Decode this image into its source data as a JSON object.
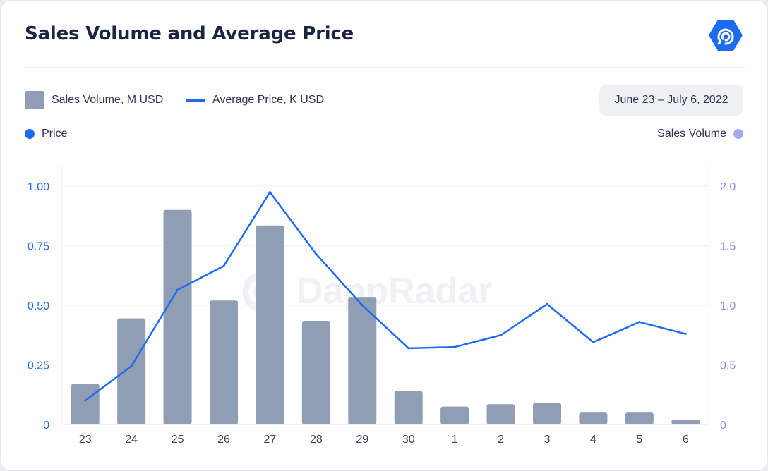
{
  "header": {
    "title": "Sales Volume and Average Price",
    "logo_icon": "dappradar-logo-icon"
  },
  "legend": {
    "bar_label": "Sales Volume, M USD",
    "line_label": "Average Price, K USD"
  },
  "date_range": "June 23 – July 6, 2022",
  "axis_legends": {
    "left": "Price",
    "right": "Sales Volume"
  },
  "watermark": "DappRadar",
  "colors": {
    "bar": "#8f9db5",
    "line": "#1e6bf2",
    "left_axis": "#1e6bf2",
    "right_axis": "#8a8ff0",
    "logo": "#1e6bf2"
  },
  "chart_data": {
    "type": "bar",
    "categories": [
      "23",
      "24",
      "25",
      "26",
      "27",
      "28",
      "29",
      "30",
      "1",
      "2",
      "3",
      "4",
      "5",
      "6"
    ],
    "series": [
      {
        "name": "Sales Volume, M USD",
        "type": "bar",
        "axis": "right",
        "values": [
          0.34,
          0.89,
          1.8,
          1.04,
          1.67,
          0.87,
          1.07,
          0.28,
          0.15,
          0.17,
          0.18,
          0.1,
          0.1,
          0.04
        ]
      },
      {
        "name": "Average Price, K USD",
        "type": "line",
        "axis": "left",
        "values": [
          0.1,
          0.245,
          0.565,
          0.665,
          0.975,
          0.715,
          0.5,
          0.32,
          0.325,
          0.375,
          0.505,
          0.345,
          0.43,
          0.38
        ]
      }
    ],
    "y_left": {
      "ticks": [
        "0",
        "0.25",
        "0.50",
        "0.75",
        "1.00"
      ],
      "lim": [
        0,
        1
      ]
    },
    "y_right": {
      "ticks": [
        "0",
        "0.5",
        "1.0",
        "1.5",
        "2.0"
      ],
      "lim": [
        0,
        2
      ]
    },
    "grid": true
  }
}
